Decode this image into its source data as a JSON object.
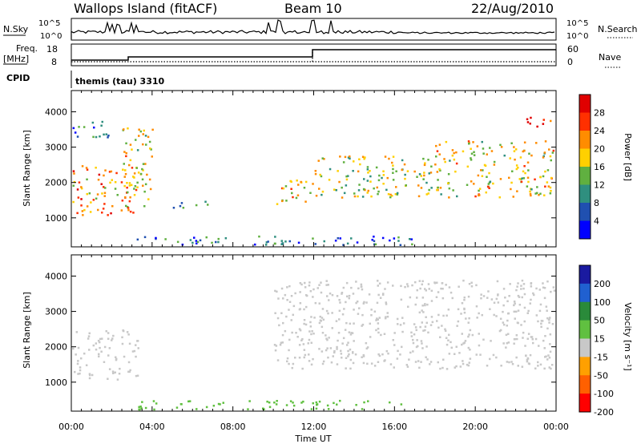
{
  "header": {
    "title": "Wallops Island (fitACF)",
    "beam": "Beam 10",
    "date": "22/Aug/2010"
  },
  "top_panels": {
    "nsky_label": "N.Sky",
    "nsearch_label": "N.Search",
    "nsky_ticks": [
      "10^5",
      "10^0"
    ],
    "nsearch_ticks": [
      "10^5",
      "10^0"
    ],
    "freq_label": "Freq.",
    "freq_unit": "[MHz]",
    "freq_ticks": [
      "18",
      "8"
    ],
    "nave_label": "Nave",
    "nave_ticks": [
      "60",
      "0"
    ],
    "cpid_label": "CPID",
    "cpid_value": "themis (tau) 3310"
  },
  "chart_data": [
    {
      "type": "heatmap",
      "panel": "power",
      "ylabel": "Slant Range [km]",
      "yticks": [
        "4000",
        "3000",
        "2000",
        "1000"
      ],
      "yrange_km": [
        180,
        4600
      ],
      "colorbar_label": "Power [dB]",
      "colorbar_ticks": [
        "28",
        "24",
        "20",
        "16",
        "12",
        "8",
        "4"
      ],
      "colorbar_colors": [
        "#e00000",
        "#ff3000",
        "#ff8c00",
        "#ffd000",
        "#60b040",
        "#2f8f7f",
        "#2050b0",
        "#0000ff"
      ],
      "regions": [
        {
          "t": [
            0.0,
            3.3
          ],
          "range_km": [
            1100,
            2500
          ],
          "power_db": 20
        },
        {
          "t": [
            2.5,
            4.0
          ],
          "range_km": [
            1300,
            3600
          ],
          "power_db": 16
        },
        {
          "t": [
            0.0,
            2.0
          ],
          "range_km": [
            3300,
            3800
          ],
          "power_db": 6
        },
        {
          "t": [
            5.0,
            7.0
          ],
          "range_km": [
            1300,
            1500
          ],
          "power_db": 10
        },
        {
          "t": [
            10.0,
            12.0
          ],
          "range_km": [
            1400,
            2100
          ],
          "power_db": 18
        },
        {
          "t": [
            12.0,
            18.0
          ],
          "range_km": [
            1600,
            2800
          ],
          "power_db": 14
        },
        {
          "t": [
            18.0,
            24.0
          ],
          "range_km": [
            1600,
            3200
          ],
          "power_db": 16
        },
        {
          "t": [
            22.5,
            24.0
          ],
          "range_km": [
            3600,
            3900
          ],
          "power_db": 26
        },
        {
          "t": [
            3.0,
            17.0
          ],
          "range_km": [
            200,
            500
          ],
          "power_db": 6
        }
      ]
    },
    {
      "type": "heatmap",
      "panel": "velocity",
      "ylabel": "Slant Range [km]",
      "yticks": [
        "4000",
        "3000",
        "2000",
        "1000"
      ],
      "yrange_km": [
        180,
        4600
      ],
      "colorbar_label": "Velocity [m s⁻¹]",
      "colorbar_ticks": [
        "200",
        "100",
        "50",
        "15",
        "-15",
        "-50",
        "-100",
        "-200"
      ],
      "colorbar_colors": [
        "#1a1aa0",
        "#2060d0",
        "#2a8a3a",
        "#60c040",
        "#c8c8c8",
        "#ffa000",
        "#ff6000",
        "#ff0000"
      ],
      "regions": [
        {
          "t": [
            0.0,
            3.3
          ],
          "range_km": [
            1100,
            2500
          ],
          "velocity": 0
        },
        {
          "t": [
            10.0,
            24.0
          ],
          "range_km": [
            1400,
            3900
          ],
          "velocity": 0
        },
        {
          "t": [
            3.0,
            17.0
          ],
          "range_km": [
            200,
            500
          ],
          "velocity": 30
        }
      ]
    }
  ],
  "xaxis": {
    "label": "Time UT",
    "ticks": [
      "00:00",
      "04:00",
      "08:00",
      "12:00",
      "16:00",
      "20:00",
      "00:00"
    ],
    "range_hours": [
      0,
      24
    ]
  }
}
